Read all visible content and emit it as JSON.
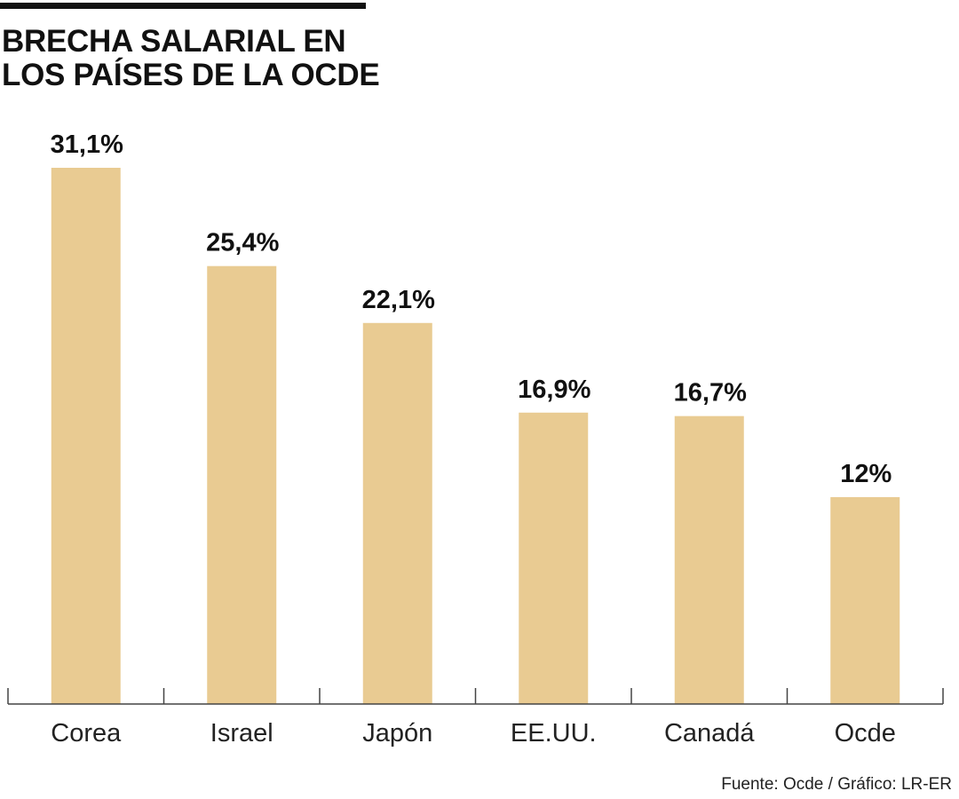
{
  "title_lines": [
    "BRECHA SALARIAL EN",
    "LOS PAÍSES DE LA OCDE"
  ],
  "source": "Fuente: Ocde / Gráfico: LR-ER",
  "colors": {
    "bar": "#E9CB92",
    "axis": "#444444",
    "text": "#111111",
    "rule": "#111111"
  },
  "chart_data": {
    "type": "bar",
    "title": "BRECHA SALARIAL EN LOS PAÍSES DE LA OCDE",
    "xlabel": "",
    "ylabel": "",
    "categories": [
      "Corea",
      "Israel",
      "Japón",
      "EE.UU.",
      "Canadá",
      "Ocde"
    ],
    "values": [
      31.1,
      25.4,
      22.1,
      16.9,
      16.7,
      12
    ],
    "value_labels": [
      "31,1%",
      "25,4%",
      "22,1%",
      "16,9%",
      "16,7%",
      "12%"
    ],
    "ylim": [
      0,
      31.1
    ],
    "grid": false,
    "legend": "none"
  }
}
